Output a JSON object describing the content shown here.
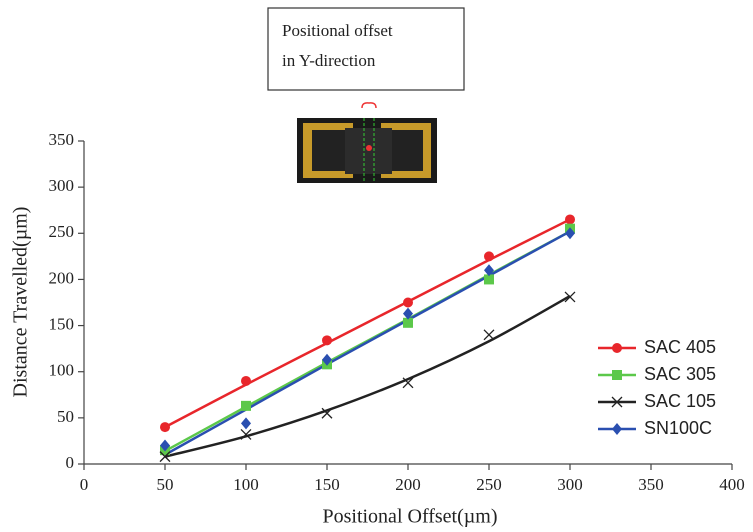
{
  "chart_data": {
    "type": "scatter",
    "annotation": [
      "Positional offset",
      "in Y-direction"
    ],
    "x_label": "Positional Offset(µm)",
    "y_label": "Distance Travelled(µm)",
    "x": [
      50,
      100,
      150,
      200,
      250,
      300
    ],
    "series": [
      {
        "name": "SAC 405",
        "color": "#e8262b",
        "marker": "circle",
        "values": [
          40,
          90,
          134,
          175,
          225,
          265
        ],
        "fit": [
          40,
          86,
          131,
          176,
          221,
          265
        ]
      },
      {
        "name": "SAC 305",
        "color": "#5cc84a",
        "marker": "square",
        "values": [
          15,
          63,
          108,
          153,
          200,
          255
        ],
        "fit": [
          14,
          62,
          110,
          157,
          205,
          252
        ]
      },
      {
        "name": "SAC 105",
        "color": "#222222",
        "marker": "x",
        "values": [
          8,
          32,
          55,
          88,
          140,
          181
        ],
        "fit": [
          8,
          30,
          58,
          92,
          133,
          182
        ]
      },
      {
        "name": "SN100C",
        "color": "#2a4fb0",
        "marker": "diamond",
        "values": [
          20,
          44,
          113,
          163,
          210,
          250
        ],
        "fit": [
          10,
          59,
          108,
          156,
          204,
          252
        ]
      }
    ],
    "xlim": [
      0,
      400
    ],
    "xticks": [
      0,
      50,
      100,
      150,
      200,
      250,
      300,
      350,
      400
    ],
    "ylim": [
      0,
      350
    ],
    "yticks": [
      0,
      50,
      100,
      150,
      200,
      250,
      300,
      350
    ],
    "legend": "right"
  }
}
